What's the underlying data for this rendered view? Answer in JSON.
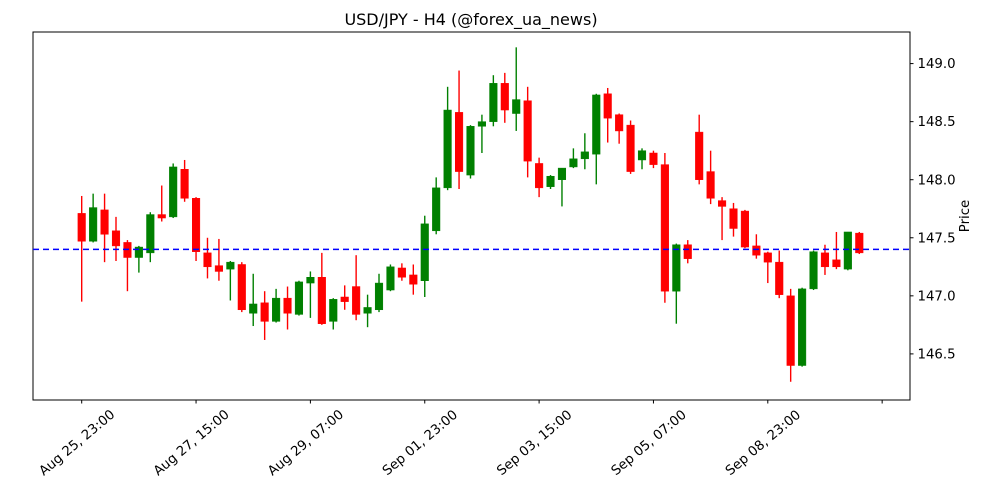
{
  "chart_data": {
    "type": "candlestick",
    "title": "USD/JPY - H4 (@forex_ua_news)",
    "xlabel": "",
    "ylabel": "Price",
    "instrument": "USD/JPY",
    "timeframe": "H4",
    "ylim": [
      146.103,
      149.272
    ],
    "grid": false,
    "y_ticks": [
      {
        "value": 146.5,
        "label": "146.5"
      },
      {
        "value": 147.0,
        "label": "147.0"
      },
      {
        "value": 147.5,
        "label": "147.5"
      },
      {
        "value": 148.0,
        "label": "148.0"
      },
      {
        "value": 148.5,
        "label": "148.5"
      },
      {
        "value": 149.0,
        "label": "149.0"
      }
    ],
    "x_ticks": [
      {
        "index": 0,
        "label": "Aug 25, 23:00"
      },
      {
        "index": 10,
        "label": "Aug 27, 15:00"
      },
      {
        "index": 20,
        "label": "Aug 29, 07:00"
      },
      {
        "index": 30,
        "label": "Sep 01, 23:00"
      },
      {
        "index": 40,
        "label": "Sep 03, 15:00"
      },
      {
        "index": 50,
        "label": "Sep 05, 07:00"
      },
      {
        "index": 60,
        "label": "Sep 08, 23:00"
      },
      {
        "index": 70,
        "label": ""
      }
    ],
    "hline": {
      "price": 147.4,
      "color": "#0000ff",
      "style": "dashed"
    },
    "colors": {
      "up": "#008000",
      "down": "#ff0000",
      "spine": "#000000",
      "background": "#ffffff"
    },
    "candles_format": [
      "open",
      "high",
      "low",
      "close"
    ],
    "candles": [
      [
        147.71,
        147.86,
        146.95,
        147.47
      ],
      [
        147.47,
        147.88,
        147.46,
        147.76
      ],
      [
        147.74,
        147.88,
        147.29,
        147.53
      ],
      [
        147.56,
        147.68,
        147.3,
        147.43
      ],
      [
        147.46,
        147.48,
        147.04,
        147.33
      ],
      [
        147.33,
        147.43,
        147.2,
        147.42
      ],
      [
        147.37,
        147.72,
        147.29,
        147.7
      ],
      [
        147.7,
        147.95,
        147.64,
        147.67
      ],
      [
        147.68,
        148.14,
        147.67,
        148.11
      ],
      [
        148.09,
        148.17,
        147.81,
        147.84
      ],
      [
        147.84,
        147.85,
        147.3,
        147.38
      ],
      [
        147.37,
        147.5,
        147.15,
        147.25
      ],
      [
        147.26,
        147.49,
        147.13,
        147.21
      ],
      [
        147.23,
        147.3,
        146.96,
        147.29
      ],
      [
        147.27,
        147.29,
        146.86,
        146.88
      ],
      [
        146.85,
        147.19,
        146.74,
        146.93
      ],
      [
        146.94,
        147.04,
        146.62,
        146.78
      ],
      [
        146.78,
        147.06,
        146.77,
        146.98
      ],
      [
        146.98,
        147.08,
        146.71,
        146.85
      ],
      [
        146.84,
        147.13,
        146.83,
        147.12
      ],
      [
        147.11,
        147.21,
        146.81,
        147.16
      ],
      [
        147.16,
        147.37,
        146.75,
        146.76
      ],
      [
        146.78,
        146.98,
        146.71,
        146.97
      ],
      [
        146.99,
        147.09,
        146.88,
        146.95
      ],
      [
        147.08,
        147.35,
        146.79,
        146.84
      ],
      [
        146.85,
        147.01,
        146.73,
        146.9
      ],
      [
        146.88,
        147.19,
        146.86,
        147.11
      ],
      [
        147.05,
        147.27,
        147.04,
        147.25
      ],
      [
        147.24,
        147.28,
        147.13,
        147.16
      ],
      [
        147.18,
        147.27,
        147.01,
        147.1
      ],
      [
        147.13,
        147.69,
        146.99,
        147.62
      ],
      [
        147.56,
        148.02,
        147.53,
        147.93
      ],
      [
        147.93,
        148.8,
        147.91,
        148.6
      ],
      [
        148.58,
        148.94,
        147.92,
        148.07
      ],
      [
        148.04,
        148.47,
        148.01,
        148.46
      ],
      [
        148.46,
        148.56,
        148.23,
        148.5
      ],
      [
        148.5,
        148.9,
        148.46,
        148.83
      ],
      [
        148.83,
        148.92,
        148.49,
        148.6
      ],
      [
        148.57,
        149.14,
        148.42,
        148.69
      ],
      [
        148.68,
        148.8,
        148.02,
        148.16
      ],
      [
        148.14,
        148.19,
        147.85,
        147.93
      ],
      [
        147.94,
        148.04,
        147.92,
        148.03
      ],
      [
        148.0,
        148.1,
        147.77,
        148.1
      ],
      [
        148.11,
        148.27,
        148.1,
        148.18
      ],
      [
        148.18,
        148.4,
        148.09,
        148.24
      ],
      [
        148.22,
        148.74,
        147.96,
        148.73
      ],
      [
        148.74,
        148.79,
        148.32,
        148.53
      ],
      [
        148.56,
        148.57,
        148.31,
        148.42
      ],
      [
        148.47,
        148.51,
        148.05,
        148.07
      ],
      [
        148.17,
        148.27,
        148.09,
        148.25
      ],
      [
        148.23,
        148.25,
        148.1,
        148.13
      ],
      [
        148.13,
        148.23,
        146.94,
        147.04
      ],
      [
        147.04,
        147.45,
        146.76,
        147.44
      ],
      [
        147.44,
        147.48,
        147.28,
        147.32
      ],
      [
        148.41,
        148.56,
        147.96,
        148.0
      ],
      [
        148.07,
        148.25,
        147.79,
        147.84
      ],
      [
        147.82,
        147.85,
        147.48,
        147.77
      ],
      [
        147.75,
        147.8,
        147.51,
        147.58
      ],
      [
        147.73,
        147.74,
        147.41,
        147.42
      ],
      [
        147.43,
        147.53,
        147.32,
        147.35
      ],
      [
        147.37,
        147.38,
        147.11,
        147.29
      ],
      [
        147.29,
        147.39,
        146.98,
        147.01
      ],
      [
        147.0,
        147.06,
        146.26,
        146.4
      ],
      [
        146.4,
        147.07,
        146.39,
        147.06
      ],
      [
        147.06,
        147.39,
        147.05,
        147.38
      ],
      [
        147.37,
        147.44,
        147.18,
        147.25
      ],
      [
        147.31,
        147.55,
        147.23,
        147.25
      ],
      [
        147.23,
        147.55,
        147.22,
        147.55
      ],
      [
        147.54,
        147.55,
        147.36,
        147.37
      ]
    ]
  }
}
